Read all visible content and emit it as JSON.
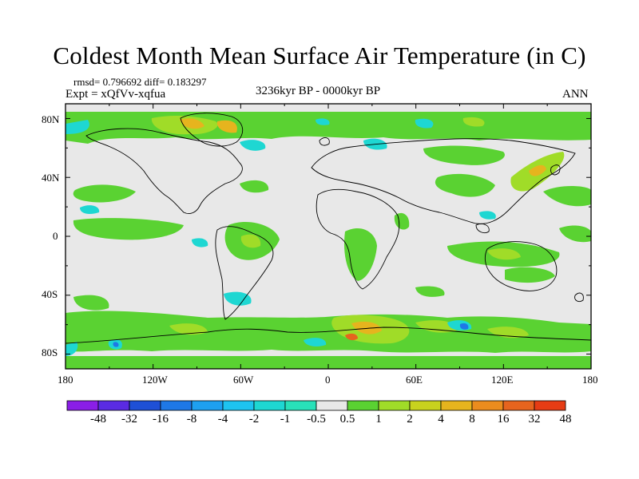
{
  "title": "Coldest Month Mean Surface Air Temperature (in C)",
  "stats": "rmsd= 0.796692  diff= 0.183297",
  "experiment": "Expt = xQfVv-xqfua",
  "period": "3236kyr BP - 0000kyr BP",
  "season": "ANN",
  "lat_labels": [
    "80N",
    "40N",
    "0",
    "40S",
    "80S"
  ],
  "lon_labels": [
    "180",
    "120W",
    "60W",
    "0",
    "60E",
    "120E",
    "180"
  ],
  "colorbar": {
    "labels": [
      "-48",
      "-32",
      "-16",
      "-8",
      "-4",
      "-2",
      "-1",
      "-0.5",
      "0.5",
      "1",
      "2",
      "4",
      "8",
      "16",
      "32",
      "48"
    ],
    "colors": [
      "#8a1ee6",
      "#5a2be3",
      "#1e50d6",
      "#1e78e6",
      "#1ea0f0",
      "#1ec3f0",
      "#1ed7d2",
      "#28e1b9",
      "#e8e8e8",
      "#5ad232",
      "#a0dc28",
      "#c8d21e",
      "#e6b41e",
      "#eb8c1e",
      "#e6641e",
      "#e63c14"
    ]
  },
  "colors": {
    "ocean_bg": "#e8e8e8",
    "coast": "#000000"
  }
}
